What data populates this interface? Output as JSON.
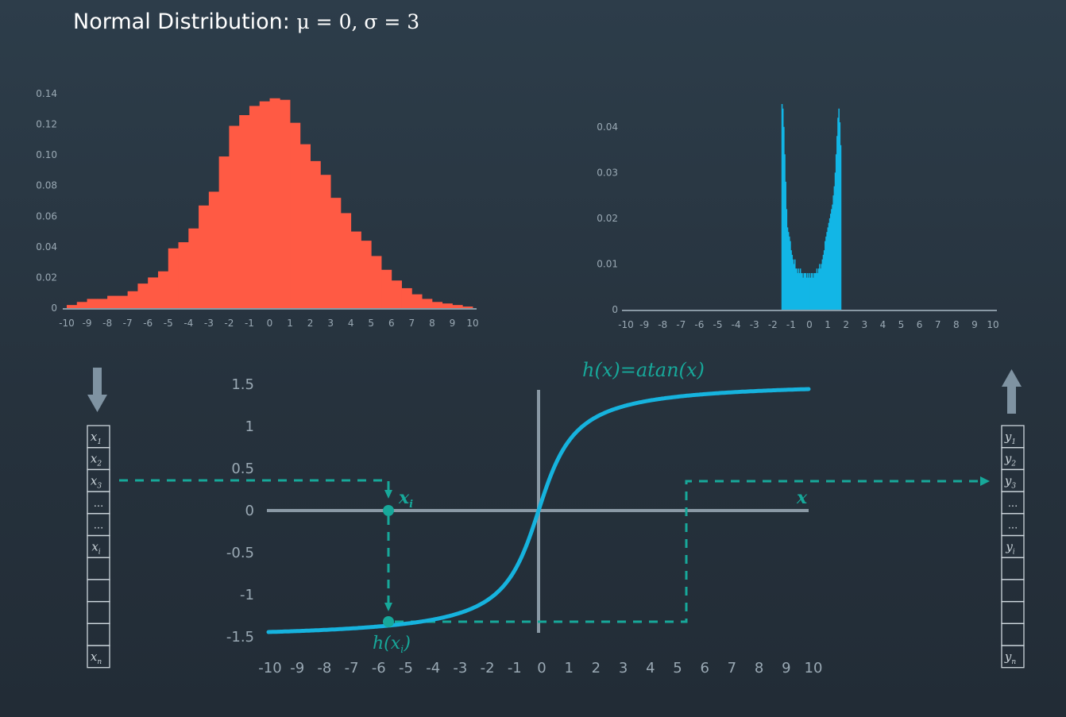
{
  "title": {
    "text": "Normal Distribution:",
    "math": "μ = 0, σ = 3"
  },
  "chart_data": [
    {
      "type": "bar",
      "color": "#ff5a44",
      "x": [
        -9.75,
        -9.25,
        -8.75,
        -8.25,
        -7.75,
        -7.25,
        -6.75,
        -6.25,
        -5.75,
        -5.25,
        -4.75,
        -4.25,
        -3.75,
        -3.25,
        -2.75,
        -2.25,
        -1.75,
        -1.25,
        -0.75,
        -0.25,
        0.25,
        0.75,
        1.25,
        1.75,
        2.25,
        2.75,
        3.25,
        3.75,
        4.25,
        4.75,
        5.25,
        5.75,
        6.25,
        6.75,
        7.25,
        7.75,
        8.25,
        8.75,
        9.25,
        9.75
      ],
      "values": [
        0.002,
        0.004,
        0.006,
        0.006,
        0.008,
        0.008,
        0.011,
        0.016,
        0.02,
        0.024,
        0.039,
        0.043,
        0.052,
        0.067,
        0.076,
        0.099,
        0.119,
        0.126,
        0.132,
        0.135,
        0.137,
        0.136,
        0.121,
        0.107,
        0.096,
        0.087,
        0.072,
        0.062,
        0.05,
        0.044,
        0.034,
        0.025,
        0.018,
        0.013,
        0.009,
        0.006,
        0.004,
        0.003,
        0.002,
        0.001
      ],
      "xlim": [
        -10,
        10
      ],
      "ylim": [
        0,
        0.14
      ],
      "xticks": [
        "-10",
        "-9",
        "-8",
        "-7",
        "-6",
        "-5",
        "-4",
        "-3",
        "-2",
        "-1",
        "0",
        "1",
        "2",
        "3",
        "4",
        "5",
        "6",
        "7",
        "8",
        "9",
        "10"
      ],
      "yticks": [
        "0",
        "0.02",
        "0.04",
        "0.06",
        "0.08",
        "0.10",
        "0.12",
        "0.14"
      ]
    },
    {
      "type": "bar",
      "color": "#12b6e6",
      "x": [
        -1.5,
        -1.45,
        -1.4,
        -1.35,
        -1.3,
        -1.25,
        -1.2,
        -1.15,
        -1.1,
        -1.05,
        -1.0,
        -0.95,
        -0.9,
        -0.85,
        -0.8,
        -0.75,
        -0.7,
        -0.65,
        -0.6,
        -0.55,
        -0.5,
        -0.45,
        -0.4,
        -0.35,
        -0.3,
        -0.25,
        -0.2,
        -0.15,
        -0.1,
        -0.05,
        0.0,
        0.05,
        0.1,
        0.15,
        0.2,
        0.25,
        0.3,
        0.35,
        0.4,
        0.45,
        0.5,
        0.55,
        0.6,
        0.65,
        0.7,
        0.75,
        0.8,
        0.85,
        0.9,
        0.95,
        1.0,
        1.05,
        1.1,
        1.15,
        1.2,
        1.25,
        1.3,
        1.35,
        1.4,
        1.45,
        1.5,
        1.55,
        1.6,
        1.65,
        1.7
      ],
      "values": [
        0.045,
        0.044,
        0.04,
        0.034,
        0.028,
        0.022,
        0.018,
        0.017,
        0.016,
        0.015,
        0.013,
        0.012,
        0.011,
        0.01,
        0.011,
        0.009,
        0.009,
        0.008,
        0.009,
        0.008,
        0.009,
        0.008,
        0.008,
        0.007,
        0.008,
        0.008,
        0.008,
        0.007,
        0.008,
        0.007,
        0.008,
        0.007,
        0.008,
        0.008,
        0.007,
        0.008,
        0.008,
        0.008,
        0.009,
        0.008,
        0.009,
        0.01,
        0.009,
        0.01,
        0.011,
        0.012,
        0.013,
        0.015,
        0.016,
        0.017,
        0.018,
        0.019,
        0.02,
        0.021,
        0.022,
        0.023,
        0.025,
        0.027,
        0.03,
        0.034,
        0.038,
        0.042,
        0.044,
        0.041,
        0.036
      ],
      "xlim": [
        -10,
        10
      ],
      "ylim": [
        0,
        0.045
      ],
      "xticks": [
        "-10",
        "-9",
        "-8",
        "-7",
        "-6",
        "-5",
        "-4",
        "-3",
        "-2",
        "-1",
        "0",
        "1",
        "2",
        "3",
        "4",
        "5",
        "6",
        "7",
        "8",
        "9",
        "10"
      ],
      "yticks": [
        "0",
        "0.01",
        "0.02",
        "0.03",
        "0.04"
      ]
    }
  ],
  "plot": {
    "function_label": "h(x)=atan(x)",
    "x_axis_label": "x",
    "point_x_label": "x",
    "point_x_sub": "i",
    "point_h_label": "h(x",
    "point_h_sub": "i",
    "point_h_close": ")",
    "xticks": [
      "-10",
      "-9",
      "-8",
      "-7",
      "-6",
      "-5",
      "-4",
      "-3",
      "-2",
      "-1",
      "0",
      "1",
      "2",
      "3",
      "4",
      "5",
      "6",
      "7",
      "8",
      "9",
      "10"
    ],
    "yticks": [
      "1.5",
      "1",
      "0.5",
      "0",
      "-0.5",
      "-1",
      "-1.5"
    ],
    "curve_color": "#16b3de",
    "accent_color": "#17a89a"
  },
  "input_vector": {
    "cells": [
      {
        "v": "x",
        "s": "1"
      },
      {
        "v": "x",
        "s": "2"
      },
      {
        "v": "x",
        "s": "3"
      },
      {
        "v": "...",
        "s": ""
      },
      {
        "v": "...",
        "s": ""
      },
      {
        "v": "x",
        "s": "i"
      },
      {
        "v": "",
        "s": ""
      },
      {
        "v": "",
        "s": ""
      },
      {
        "v": "",
        "s": ""
      },
      {
        "v": "",
        "s": ""
      },
      {
        "v": "x",
        "s": "n"
      }
    ]
  },
  "output_vector": {
    "cells": [
      {
        "v": "y",
        "s": "1"
      },
      {
        "v": "y",
        "s": "2"
      },
      {
        "v": "y",
        "s": "3"
      },
      {
        "v": "...",
        "s": ""
      },
      {
        "v": "...",
        "s": ""
      },
      {
        "v": "y",
        "s": "i"
      },
      {
        "v": "",
        "s": ""
      },
      {
        "v": "",
        "s": ""
      },
      {
        "v": "",
        "s": ""
      },
      {
        "v": "",
        "s": ""
      },
      {
        "v": "y",
        "s": "n"
      }
    ]
  },
  "icons": {
    "input_arrow": "down-arrow-icon",
    "output_arrow": "up-arrow-icon"
  }
}
